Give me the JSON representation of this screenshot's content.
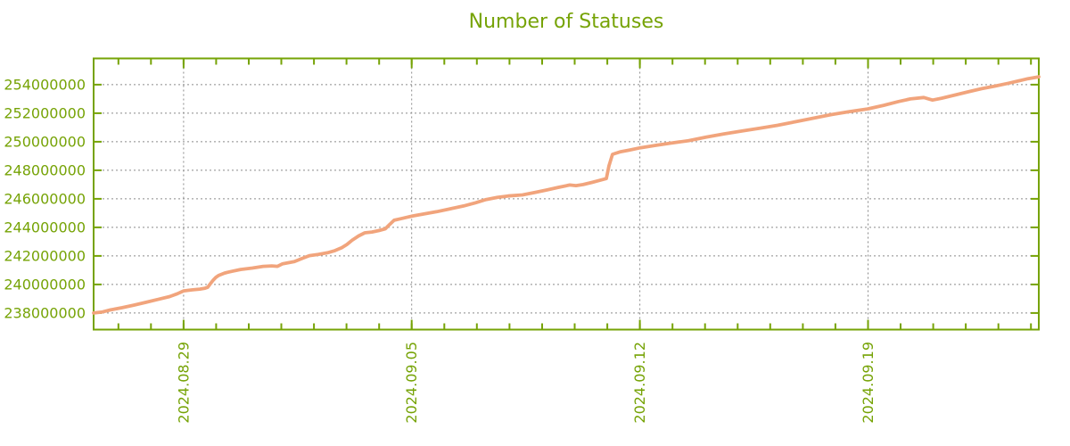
{
  "title": "Number of Statuses",
  "colors": {
    "accent_green": "#76a306",
    "line_salmon": "#f1a47c",
    "grid_gray": "#8a8a8a",
    "background": "#ffffff"
  },
  "chart_data": {
    "type": "line",
    "title": "Number of Statuses",
    "xlabel": "",
    "ylabel": "",
    "grid": true,
    "legend": null,
    "value_unit": "statuses",
    "value_scale": 1000000,
    "x_axis": {
      "start_date": "2024.08.26",
      "end_date": "2024.09.24",
      "span_days": 29,
      "first_minor_tick_day": 0.76,
      "minor_tick_every_days": 1,
      "major_ticks": [
        {
          "label": "2024.08.29",
          "day": 2.76
        },
        {
          "label": "2024.09.05",
          "day": 9.76
        },
        {
          "label": "2024.09.12",
          "day": 16.76
        },
        {
          "label": "2024.09.19",
          "day": 23.76
        }
      ]
    },
    "y_axis": {
      "min_millions": 236.84,
      "max_millions": 255.84,
      "tick_values_millions": [
        238,
        240,
        242,
        244,
        246,
        248,
        250,
        252,
        254
      ],
      "tick_labels": [
        "238000000",
        "240000000",
        "242000000",
        "244000000",
        "246000000",
        "248000000",
        "250000000",
        "252000000",
        "254000000"
      ]
    },
    "series": [
      {
        "name": "Number of Statuses",
        "points_format": "[days_since_axis_start, value_in_millions]",
        "points": [
          [
            0,
            238.0
          ],
          [
            0.27,
            238.08
          ],
          [
            0.52,
            238.22
          ],
          [
            0.88,
            238.38
          ],
          [
            1.23,
            238.55
          ],
          [
            1.61,
            238.75
          ],
          [
            1.97,
            238.95
          ],
          [
            2.33,
            239.15
          ],
          [
            2.57,
            239.35
          ],
          [
            2.76,
            239.55
          ],
          [
            3.01,
            239.62
          ],
          [
            3.26,
            239.68
          ],
          [
            3.42,
            239.74
          ],
          [
            3.5,
            239.8
          ],
          [
            3.58,
            240.05
          ],
          [
            3.67,
            240.3
          ],
          [
            3.75,
            240.5
          ],
          [
            3.83,
            240.63
          ],
          [
            4.02,
            240.8
          ],
          [
            4.24,
            240.92
          ],
          [
            4.51,
            241.05
          ],
          [
            4.87,
            241.15
          ],
          [
            5.2,
            241.27
          ],
          [
            5.47,
            241.3
          ],
          [
            5.64,
            241.27
          ],
          [
            5.8,
            241.45
          ],
          [
            6.16,
            241.6
          ],
          [
            6.43,
            241.85
          ],
          [
            6.62,
            242.02
          ],
          [
            6.89,
            242.1
          ],
          [
            7.17,
            242.22
          ],
          [
            7.41,
            242.38
          ],
          [
            7.61,
            242.58
          ],
          [
            7.77,
            242.8
          ],
          [
            7.93,
            243.1
          ],
          [
            8.13,
            243.4
          ],
          [
            8.32,
            243.62
          ],
          [
            8.54,
            243.68
          ],
          [
            8.75,
            243.78
          ],
          [
            8.95,
            243.9
          ],
          [
            9.08,
            244.2
          ],
          [
            9.22,
            244.5
          ],
          [
            9.41,
            244.6
          ],
          [
            9.6,
            244.7
          ],
          [
            9.79,
            244.8
          ],
          [
            10.15,
            244.95
          ],
          [
            10.53,
            245.1
          ],
          [
            10.94,
            245.3
          ],
          [
            11.35,
            245.5
          ],
          [
            11.71,
            245.72
          ],
          [
            12.04,
            245.95
          ],
          [
            12.39,
            246.1
          ],
          [
            12.72,
            246.2
          ],
          [
            13.16,
            246.28
          ],
          [
            13.54,
            246.45
          ],
          [
            13.9,
            246.62
          ],
          [
            14.25,
            246.8
          ],
          [
            14.61,
            246.97
          ],
          [
            14.8,
            246.93
          ],
          [
            15.02,
            247.0
          ],
          [
            15.29,
            247.15
          ],
          [
            15.54,
            247.3
          ],
          [
            15.73,
            247.42
          ],
          [
            15.81,
            248.3
          ],
          [
            15.92,
            249.12
          ],
          [
            16.17,
            249.3
          ],
          [
            16.44,
            249.42
          ],
          [
            16.77,
            249.58
          ],
          [
            17.26,
            249.75
          ],
          [
            17.7,
            249.9
          ],
          [
            18.25,
            250.08
          ],
          [
            18.79,
            250.32
          ],
          [
            19.34,
            250.55
          ],
          [
            19.89,
            250.75
          ],
          [
            20.44,
            250.95
          ],
          [
            20.98,
            251.15
          ],
          [
            21.53,
            251.4
          ],
          [
            22.08,
            251.65
          ],
          [
            22.63,
            251.9
          ],
          [
            23.17,
            252.1
          ],
          [
            23.75,
            252.3
          ],
          [
            24.24,
            252.55
          ],
          [
            24.7,
            252.82
          ],
          [
            25.06,
            253.0
          ],
          [
            25.47,
            253.1
          ],
          [
            25.74,
            252.92
          ],
          [
            26.02,
            253.05
          ],
          [
            26.43,
            253.28
          ],
          [
            26.84,
            253.5
          ],
          [
            27.25,
            253.72
          ],
          [
            27.66,
            253.9
          ],
          [
            28.07,
            254.1
          ],
          [
            28.4,
            254.28
          ],
          [
            28.67,
            254.42
          ],
          [
            29.0,
            254.55
          ]
        ]
      }
    ]
  }
}
